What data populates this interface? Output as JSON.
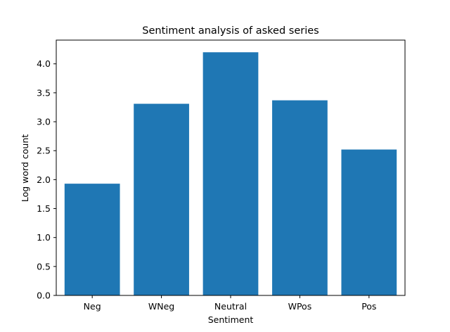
{
  "chart_data": {
    "type": "bar",
    "title": "Sentiment analysis of asked series",
    "xlabel": "Sentiment",
    "ylabel": "Log word count",
    "categories": [
      "Neg",
      "WNeg",
      "Neutral",
      "WPos",
      "Pos"
    ],
    "values": [
      1.93,
      3.31,
      4.2,
      3.37,
      2.52
    ],
    "ylim": [
      0,
      4.41
    ],
    "yticks": [
      0.0,
      0.5,
      1.0,
      1.5,
      2.0,
      2.5,
      3.0,
      3.5,
      4.0
    ],
    "ytick_labels": [
      "0.0",
      "0.5",
      "1.0",
      "1.5",
      "2.0",
      "2.5",
      "3.0",
      "3.5",
      "4.0"
    ],
    "grid": false,
    "bar_color": "#1f77b4"
  }
}
